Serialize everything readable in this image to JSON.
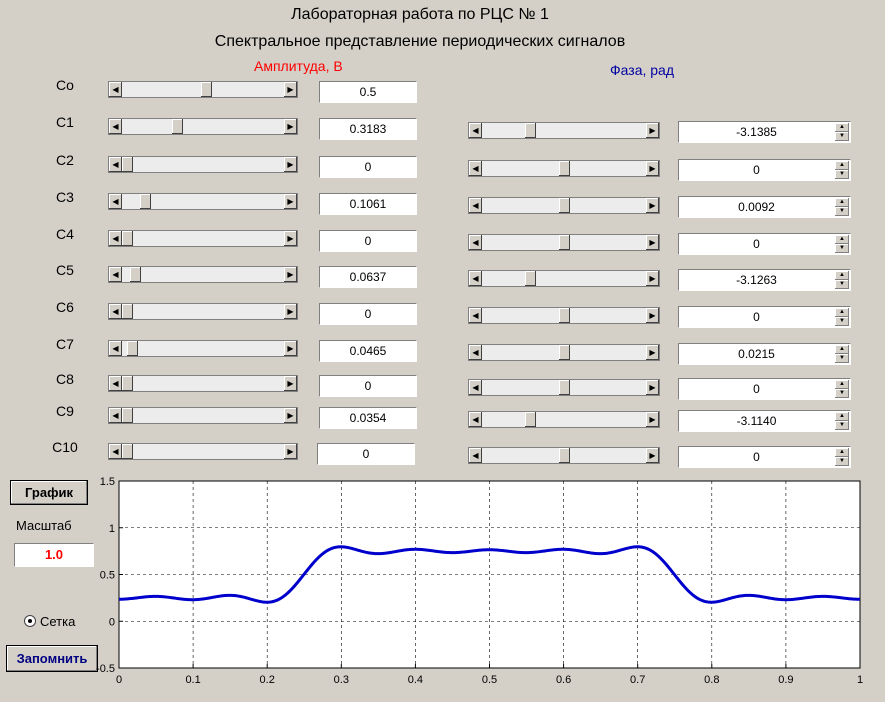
{
  "header": {
    "title1": "Лабораторная работа по РЦС № 1",
    "title2": "Спектральное  представление периодических сигналов",
    "amp_label": "Амплитуда, В",
    "phase_label": "Фаза, рад"
  },
  "rows": [
    {
      "label": "Co",
      "amp": "0.5",
      "amp_pos": 0.52
    },
    {
      "label": "C1",
      "amp": "0.3183",
      "amp_pos": 0.33,
      "phase": "-3.1385",
      "phase_pos": 0.28
    },
    {
      "label": "C2",
      "amp": "0",
      "amp_pos": 0.0,
      "phase": "0",
      "phase_pos": 0.5
    },
    {
      "label": "C3",
      "amp": "0.1061",
      "amp_pos": 0.12,
      "phase": "0.0092",
      "phase_pos": 0.5
    },
    {
      "label": "C4",
      "amp": "0",
      "amp_pos": 0.0,
      "phase": "0",
      "phase_pos": 0.5
    },
    {
      "label": "C5",
      "amp": "0.0637",
      "amp_pos": 0.05,
      "phase": "-3.1263",
      "phase_pos": 0.28
    },
    {
      "label": "C6",
      "amp": "0",
      "amp_pos": 0.0,
      "phase": "0",
      "phase_pos": 0.5
    },
    {
      "label": "C7",
      "amp": "0.0465",
      "amp_pos": 0.03,
      "phase": "0.0215",
      "phase_pos": 0.5
    },
    {
      "label": "C8",
      "amp": "0",
      "amp_pos": 0.0,
      "phase": "0",
      "phase_pos": 0.5
    },
    {
      "label": "C9",
      "amp": "0.0354",
      "amp_pos": 0.0,
      "phase": "-3.1140",
      "phase_pos": 0.28
    },
    {
      "label": "C10",
      "amp": "0",
      "amp_pos": 0.0,
      "phase": "0",
      "phase_pos": 0.5
    }
  ],
  "controls": {
    "graph_button": "График",
    "scale_label": "Масштаб",
    "scale_value": "1.0",
    "grid_label": "Сетка",
    "grid_checked": true,
    "save_button": "Запомнить"
  },
  "chart_data": {
    "type": "line",
    "xlim": [
      0,
      1
    ],
    "ylim": [
      -0.5,
      1.5
    ],
    "xticks": [
      "0",
      "0.1",
      "0.2",
      "0.3",
      "0.4",
      "0.5",
      "0.6",
      "0.7",
      "0.8",
      "0.9",
      "1"
    ],
    "yticks": [
      "-0.5",
      "0",
      "0.5",
      "1",
      "1.5"
    ],
    "grid": true,
    "line_color": "#0000cc",
    "series": [
      {
        "type": "fourier_sum",
        "c0": 0.5,
        "amplitudes": [
          0.3183,
          0,
          0.1061,
          0,
          0.0637,
          0,
          0.0465,
          0,
          0.0354,
          0
        ],
        "phases": [
          -3.1385,
          0,
          0.0092,
          0,
          -3.1263,
          0,
          0.0215,
          0,
          -3.114,
          0
        ]
      }
    ]
  }
}
